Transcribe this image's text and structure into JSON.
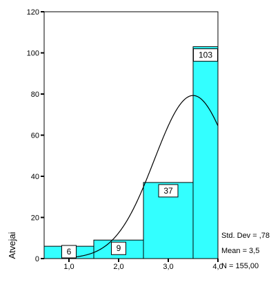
{
  "chart_data": {
    "type": "bar",
    "subtype": "histogram",
    "categories": [
      "1,0",
      "2,0",
      "3,0",
      "4,0"
    ],
    "x": [
      1.0,
      2.0,
      3.0,
      4.0
    ],
    "values": [
      6,
      9,
      37,
      103
    ],
    "data_labels": [
      "6",
      "9",
      "37",
      "103"
    ],
    "title": "",
    "xlabel": "",
    "ylabel": "Atvejai",
    "ylim": [
      0,
      120
    ],
    "yticks": [
      0,
      20,
      40,
      60,
      80,
      100,
      120
    ],
    "ytick_labels": [
      "0",
      "20",
      "40",
      "60",
      "80",
      "100",
      "120"
    ],
    "grid": false,
    "normal_curve": {
      "mean": 3.5,
      "std": 0.78,
      "n": 155,
      "bin_width": 1.0
    },
    "stats": [
      "Std. Dev = ,78",
      "Mean = 3,5",
      "N = 155,00"
    ],
    "colors": {
      "bar_fill": "#33ffff",
      "bar_stroke": "#000000",
      "curve": "#000000",
      "axis": "#000000"
    }
  }
}
